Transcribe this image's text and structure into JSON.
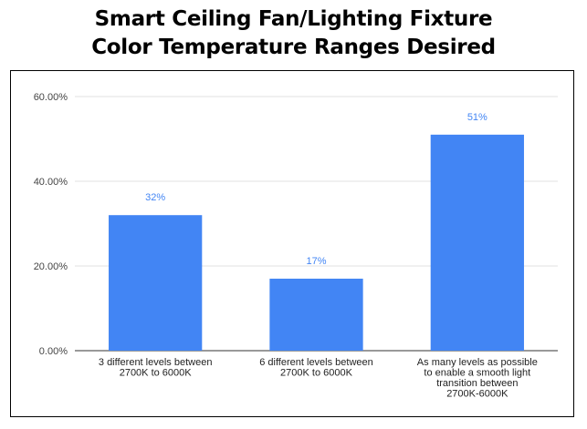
{
  "chart_data": {
    "type": "bar",
    "title_lines": [
      "Smart Ceiling Fan/Lighting Fixture",
      "Color Temperature Ranges Desired"
    ],
    "categories": [
      [
        "3 different levels between",
        "2700K to 6000K"
      ],
      [
        "6 different levels between",
        "2700K to 6000K"
      ],
      [
        "As many levels as possible",
        "to enable a smooth light",
        "transition between",
        "2700K-6000K"
      ]
    ],
    "values": [
      32,
      17,
      51
    ],
    "data_labels": [
      "32%",
      "17%",
      "51%"
    ],
    "ylim": [
      0,
      60
    ],
    "yticks": [
      {
        "value": 0,
        "label": "0.00%"
      },
      {
        "value": 20,
        "label": "20.00%"
      },
      {
        "value": 40,
        "label": "40.00%"
      },
      {
        "value": 60,
        "label": "60.00%"
      }
    ],
    "grid": true,
    "legend": "none",
    "colors": {
      "bar": "#4285f4",
      "data_label": "#4285f4",
      "grid": "#e0e0e0",
      "axis": "#333333"
    }
  }
}
